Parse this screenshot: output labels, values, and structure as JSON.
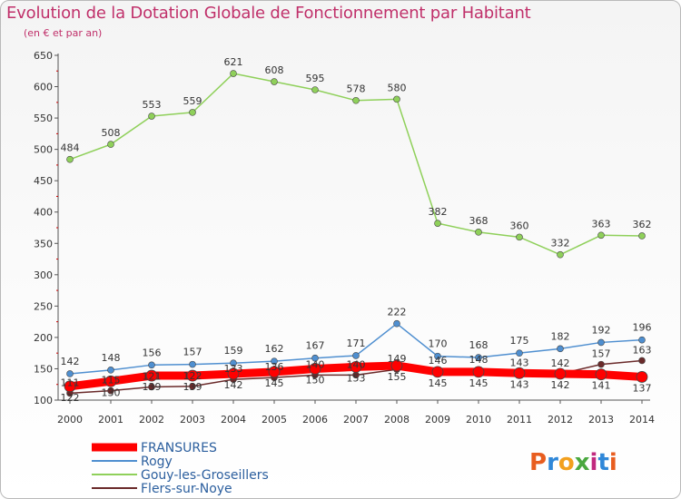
{
  "chart_data": {
    "type": "line",
    "title": "Evolution de la Dotation Globale de Fonctionnement par Habitant",
    "subtitle": "(en € et par an)",
    "xlabel": "",
    "ylabel": "",
    "categories": [
      "2000",
      "2001",
      "2002",
      "2003",
      "2004",
      "2005",
      "2006",
      "2007",
      "2008",
      "2009",
      "2010",
      "2011",
      "2012",
      "2013",
      "2014"
    ],
    "ylim": [
      100,
      650
    ],
    "yticks": [
      100,
      150,
      200,
      250,
      300,
      350,
      400,
      450,
      500,
      550,
      600,
      650
    ],
    "grid": false,
    "legend_position": "bottom-left",
    "series": [
      {
        "name": "FRANSURES",
        "color": "#ff0000",
        "values": [
          122,
          130,
          139,
          139,
          142,
          145,
          150,
          153,
          155,
          145,
          145,
          143,
          142,
          141,
          137
        ]
      },
      {
        "name": "Rogy",
        "color": "#4f8fd0",
        "values": [
          142,
          148,
          156,
          157,
          159,
          162,
          167,
          171,
          222,
          170,
          168,
          175,
          182,
          192,
          196
        ]
      },
      {
        "name": "Gouy-les-Groseillers",
        "color": "#8fd05a",
        "values": [
          484,
          508,
          553,
          559,
          621,
          608,
          595,
          578,
          580,
          382,
          368,
          360,
          332,
          363,
          362
        ]
      },
      {
        "name": "Flers-sur-Noye",
        "color": "#6a2a2a",
        "values": [
          111,
          115,
          121,
          122,
          133,
          136,
          140,
          140,
          149,
          146,
          148,
          143,
          142,
          157,
          163
        ]
      }
    ],
    "logo": "Proxiti"
  }
}
